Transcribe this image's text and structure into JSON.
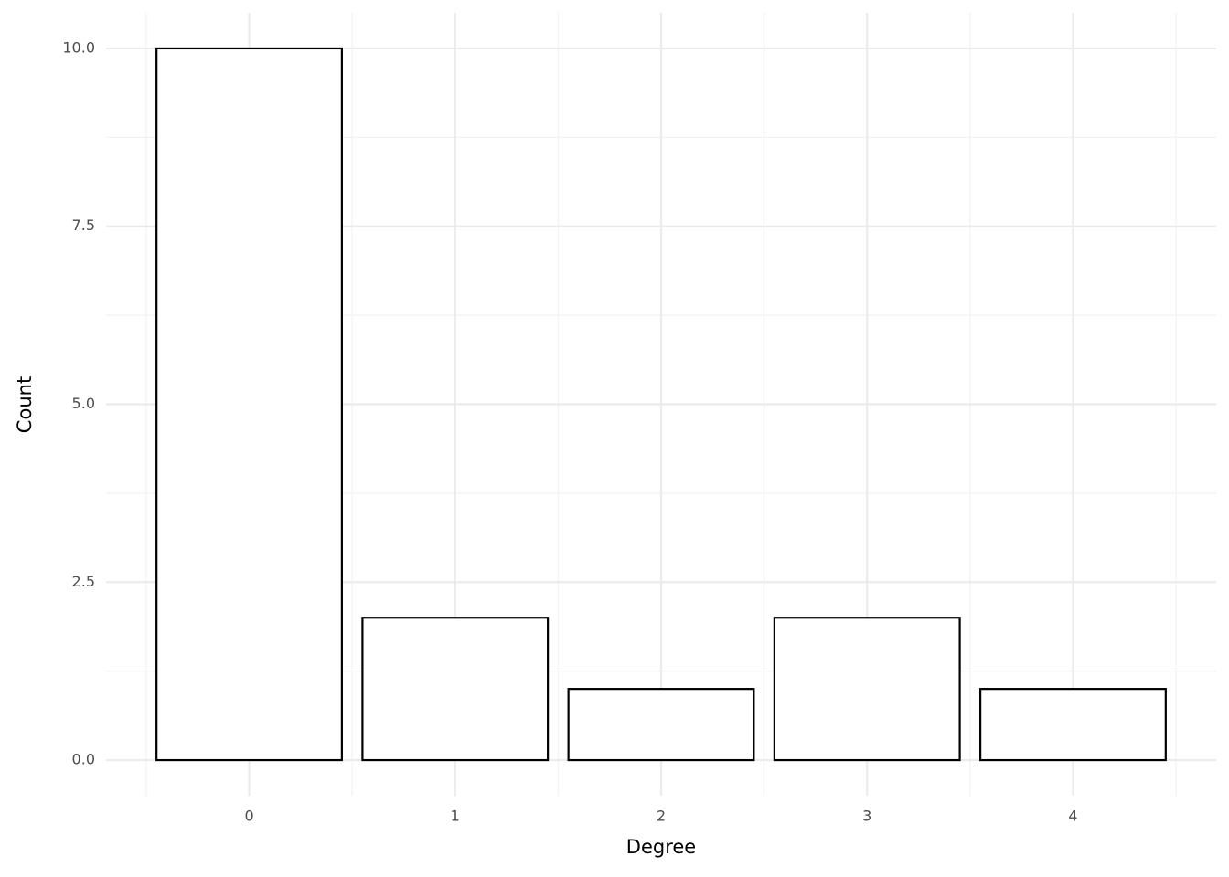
{
  "chart_data": {
    "type": "bar",
    "x": [
      0,
      1,
      2,
      3,
      4
    ],
    "values": [
      10,
      2,
      1,
      2,
      1
    ],
    "x_label": "Degree",
    "y_label": "Count",
    "fill": "#ffffff",
    "color": "#000000",
    "xlim": [
      -0.695,
      4.695
    ],
    "xticks": [
      0,
      1,
      2,
      3,
      4
    ],
    "ylim": [
      -0.5,
      10.5
    ],
    "yticks": [
      {
        "value": 0,
        "label": "0.0"
      },
      2.5,
      {
        "value": 5,
        "label": "5.0"
      },
      7.5,
      {
        "value": 10,
        "label": "10.0"
      }
    ],
    "grid": true
  }
}
